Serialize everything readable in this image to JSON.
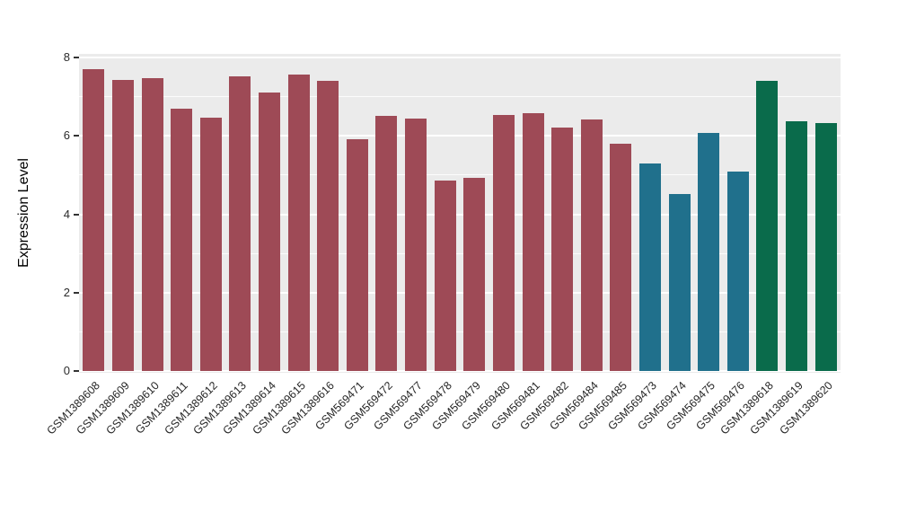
{
  "figure": {
    "title": "",
    "background": "#FFFFFF"
  },
  "chart_data": {
    "type": "bar",
    "title": "",
    "xlabel": "",
    "ylabel": "Expression Level",
    "ylim": [
      0,
      8
    ],
    "yticks": [
      0,
      2,
      4,
      6,
      8
    ],
    "minor_ticks": [
      1,
      3,
      5,
      7
    ],
    "grid": true,
    "legend": "none",
    "panel_bg": "#EBEBEB",
    "grid_color": "#FFFFFF",
    "categories": [
      "GSM1389608",
      "GSM1389609",
      "GSM1389610",
      "GSM1389611",
      "GSM1389612",
      "GSM1389613",
      "GSM1389614",
      "GSM1389615",
      "GSM1389616",
      "GSM569471",
      "GSM569472",
      "GSM569477",
      "GSM569478",
      "GSM569479",
      "GSM569480",
      "GSM569481",
      "GSM569482",
      "GSM569484",
      "GSM569485",
      "GSM569473",
      "GSM569474",
      "GSM569475",
      "GSM569476",
      "GSM1389618",
      "GSM1389619",
      "GSM1389620"
    ],
    "values": [
      7.7,
      7.42,
      7.48,
      6.7,
      6.47,
      7.52,
      7.1,
      7.56,
      7.4,
      5.92,
      6.52,
      6.45,
      4.87,
      4.92,
      6.53,
      6.57,
      6.22,
      6.42,
      5.8,
      5.3,
      4.52,
      6.07,
      5.1,
      7.4,
      6.38,
      6.33
    ],
    "bar_groups": [
      "maroon",
      "maroon",
      "maroon",
      "maroon",
      "maroon",
      "maroon",
      "maroon",
      "maroon",
      "maroon",
      "maroon",
      "maroon",
      "maroon",
      "maroon",
      "maroon",
      "maroon",
      "maroon",
      "maroon",
      "maroon",
      "maroon",
      "teal",
      "teal",
      "teal",
      "teal",
      "green",
      "green",
      "green"
    ],
    "group_colors": {
      "maroon": "#9E4A56",
      "teal": "#20708C",
      "green": "#0A6B4B"
    }
  }
}
